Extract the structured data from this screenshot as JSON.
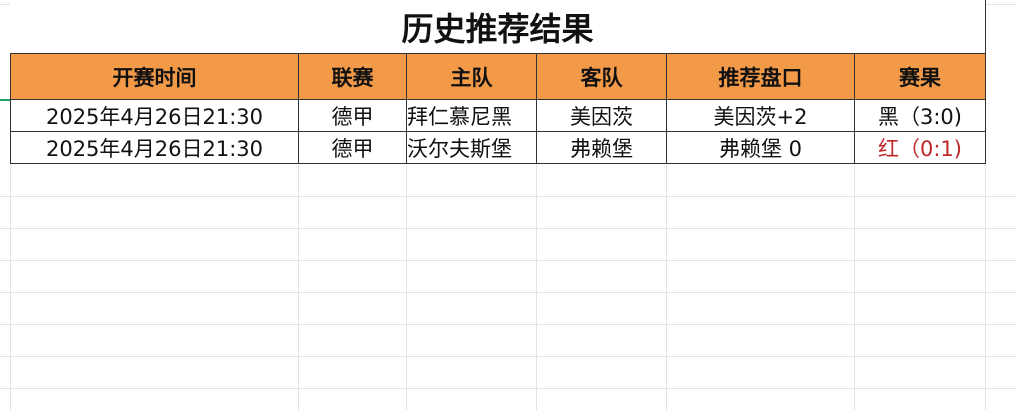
{
  "title": "历史推荐结果",
  "columns": [
    "开赛时间",
    "联赛",
    "主队",
    "客队",
    "推荐盘口",
    "赛果"
  ],
  "rows": [
    {
      "time": "2025年4月26日21:30",
      "league": "德甲",
      "home": "拜仁慕尼黑",
      "away": "美因茨",
      "pick": "美因茨+2",
      "result": "黑（3:0)",
      "result_color": "#111111"
    },
    {
      "time": "2025年4月26日21:30",
      "league": "德甲",
      "home": "沃尔夫斯堡",
      "away": "弗赖堡",
      "pick": "弗赖堡 0",
      "result": "红（0:1)",
      "result_color": "#c0282a"
    }
  ],
  "colors": {
    "header_bg": "#f39a48",
    "selection": "#1fa463"
  }
}
